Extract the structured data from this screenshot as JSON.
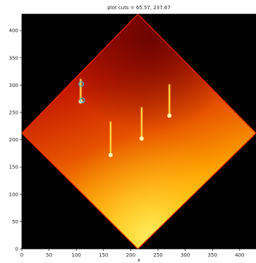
{
  "chart_data": {
    "type": "heatmap",
    "title": "plot cuts = 65.57, 237.67",
    "xlabel": "x",
    "ylabel": "",
    "xlim": [
      0,
      430
    ],
    "ylim": [
      0,
      430
    ],
    "xticks": [
      0,
      50,
      100,
      150,
      200,
      250,
      300,
      350,
      400
    ],
    "yticks": [
      0,
      50,
      100,
      150,
      200,
      250,
      300,
      350,
      400
    ],
    "colormap": "hot",
    "grid": false,
    "region": {
      "shape": "rotated-square",
      "vertices": [
        [
          0,
          212
        ],
        [
          213,
          430
        ],
        [
          430,
          212
        ],
        [
          213,
          0
        ]
      ]
    },
    "markers": [
      {
        "x": 109,
        "y": 302
      },
      {
        "x": 111,
        "y": 272
      }
    ],
    "bright_streaks": [
      {
        "x": 108,
        "y_start": 310,
        "y_end": 270
      },
      {
        "x": 163,
        "y_start": 232,
        "y_end": 172
      },
      {
        "x": 220,
        "y_start": 258,
        "y_end": 202
      },
      {
        "x": 271,
        "y_start": 300,
        "y_end": 244
      }
    ]
  },
  "colors": {
    "background": "#000000",
    "marker": "#3fb8c7",
    "axes_border": "#000000"
  }
}
